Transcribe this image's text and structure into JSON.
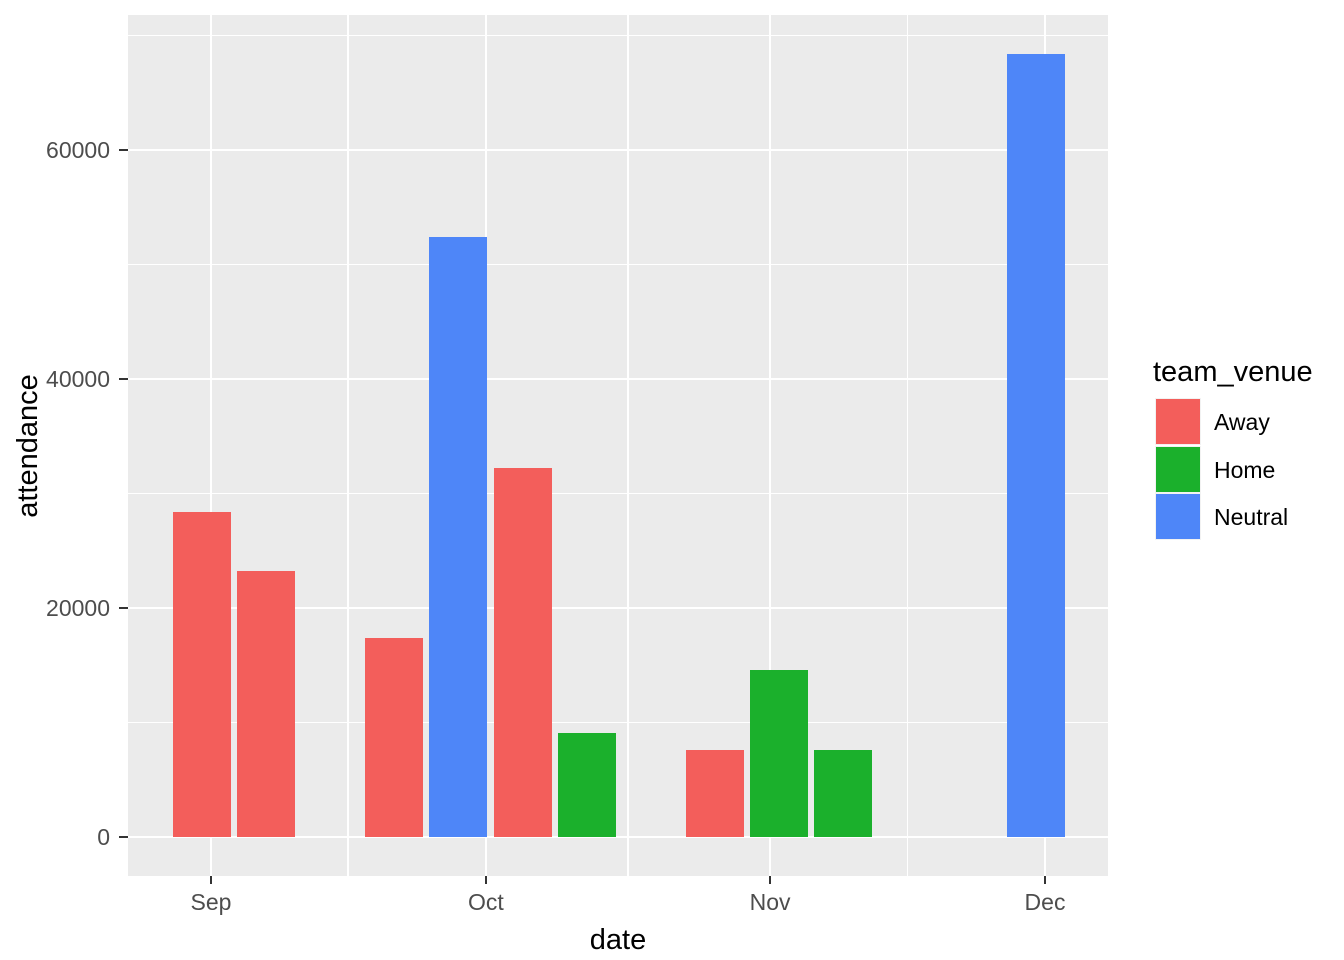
{
  "figure": {
    "background_color": "#FFFFFF",
    "panel_background_color": "#EBEBEB",
    "gridline_color": "#FFFFFF",
    "tick_mark_color": "#333333",
    "tick_label_color": "#4D4D4D"
  },
  "legend": {
    "title": "team_venue",
    "entries": [
      {
        "label": "Away",
        "color": "#F35E5B"
      },
      {
        "label": "Home",
        "color": "#1BB02C"
      },
      {
        "label": "Neutral",
        "color": "#4E86F8"
      }
    ]
  },
  "chart_data": {
    "type": "bar",
    "title": "",
    "xlabel": "date",
    "ylabel": "attendance",
    "legend_title": "team_venue",
    "legend_position": "right",
    "grid": true,
    "x_axis": {
      "type": "date",
      "tick_labels": [
        "Sep",
        "Oct",
        "Nov",
        "Dec"
      ],
      "tick_day_offsets": [
        0,
        30,
        61,
        91
      ],
      "minor_day_offsets": [
        15,
        45.5,
        76
      ]
    },
    "y_axis": {
      "tick_labels": [
        "0",
        "20000",
        "40000",
        "60000"
      ],
      "tick_values": [
        0,
        20000,
        40000,
        60000
      ],
      "minor_values": [
        10000,
        30000,
        50000,
        70000
      ],
      "ylim": [
        -3400,
        71800
      ]
    },
    "series_colors": {
      "Away": "#F35E5B",
      "Home": "#1BB02C",
      "Neutral": "#4E86F8"
    },
    "bars": [
      {
        "date": "Aug 31",
        "day_offset": -1,
        "team_venue": "Away",
        "attendance": 28400
      },
      {
        "date": "Sep 07",
        "day_offset": 6,
        "team_venue": "Away",
        "attendance": 23200
      },
      {
        "date": "Sep 21",
        "day_offset": 20,
        "team_venue": "Away",
        "attendance": 17400
      },
      {
        "date": "Sep 28",
        "day_offset": 27,
        "team_venue": "Neutral",
        "attendance": 52400
      },
      {
        "date": "Oct 05",
        "day_offset": 34,
        "team_venue": "Away",
        "attendance": 32200
      },
      {
        "date": "Oct 12",
        "day_offset": 41,
        "team_venue": "Home",
        "attendance": 9100
      },
      {
        "date": "Oct 26",
        "day_offset": 55,
        "team_venue": "Away",
        "attendance": 7600
      },
      {
        "date": "Nov 02",
        "day_offset": 62,
        "team_venue": "Home",
        "attendance": 14600
      },
      {
        "date": "Nov 09",
        "day_offset": 69,
        "team_venue": "Home",
        "attendance": 7600
      },
      {
        "date": "Nov 30",
        "day_offset": 90,
        "team_venue": "Neutral",
        "attendance": 68400
      }
    ]
  }
}
